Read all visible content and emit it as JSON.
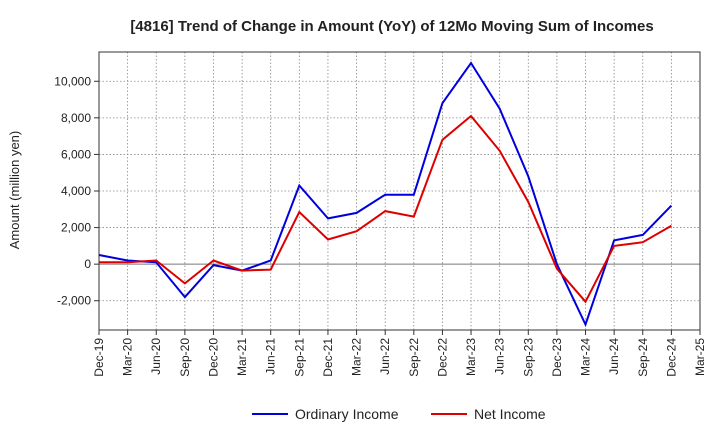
{
  "chart_data": {
    "type": "line",
    "title": "[4816]  Trend of Change in Amount (YoY) of 12Mo Moving Sum of Incomes",
    "xlabel": "",
    "ylabel": "Amount (million yen)",
    "categories": [
      "Dec-19",
      "Mar-20",
      "Jun-20",
      "Sep-20",
      "Dec-20",
      "Mar-21",
      "Jun-21",
      "Sep-21",
      "Dec-21",
      "Mar-22",
      "Jun-22",
      "Sep-22",
      "Dec-22",
      "Mar-23",
      "Jun-23",
      "Sep-23",
      "Dec-23",
      "Mar-24",
      "Jun-24",
      "Sep-24",
      "Dec-24",
      "Mar-25"
    ],
    "ylim": [
      -3600,
      11600
    ],
    "yticks": [
      -2000,
      0,
      2000,
      4000,
      6000,
      8000,
      10000
    ],
    "ytick_labels": [
      "-2,000",
      "0",
      "2,000",
      "4,000",
      "6,000",
      "8,000",
      "10,000"
    ],
    "grid": true,
    "legend_position": "bottom-center",
    "series": [
      {
        "name": "Ordinary Income",
        "color": "#0000dd",
        "values": [
          500,
          200,
          100,
          -1800,
          -50,
          -350,
          200,
          4300,
          2500,
          2800,
          3800,
          3800,
          8800,
          11000,
          8500,
          4800,
          0,
          -3300,
          1300,
          1600,
          3200,
          null
        ]
      },
      {
        "name": "Net Income",
        "color": "#dd0000",
        "values": [
          100,
          100,
          200,
          -1050,
          200,
          -350,
          -300,
          2850,
          1350,
          1800,
          2900,
          2600,
          6800,
          8100,
          6200,
          3400,
          -250,
          -2050,
          1000,
          1200,
          2100,
          null
        ]
      }
    ]
  }
}
